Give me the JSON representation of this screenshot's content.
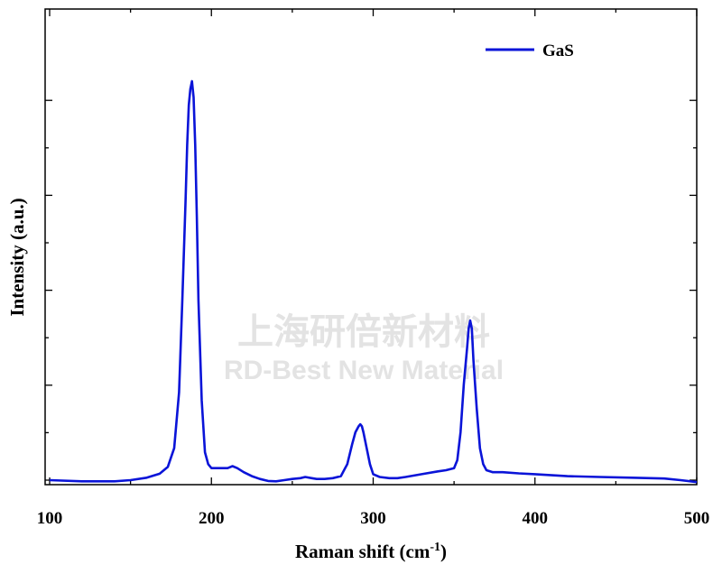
{
  "chart_data": {
    "type": "line",
    "title": "",
    "xlabel": "Raman shift (cm",
    "xlabel_sup": "-1",
    "xlabel_close": ")",
    "ylabel": "Intensity (a.u.)",
    "xlim": [
      100,
      500
    ],
    "ylim": [
      0,
      1
    ],
    "grid": false,
    "legend_position": "top-right",
    "x_ticks": [
      "100",
      "200",
      "300",
      "400",
      "500"
    ],
    "series": [
      {
        "name": "GaS",
        "color": "#0a14d8",
        "x": [
          100,
          120,
          140,
          150,
          160,
          168,
          173,
          177,
          180,
          182,
          184,
          185,
          186,
          187,
          188,
          189,
          190,
          191,
          192,
          194,
          196,
          198,
          200,
          205,
          210,
          213,
          216,
          220,
          225,
          230,
          235,
          240,
          245,
          250,
          255,
          258,
          262,
          265,
          270,
          275,
          280,
          284,
          287,
          289,
          291,
          292,
          293,
          294,
          296,
          298,
          300,
          304,
          310,
          315,
          320,
          330,
          340,
          345,
          350,
          352,
          354,
          356,
          358,
          359,
          360,
          361,
          362,
          364,
          366,
          368,
          370,
          374,
          380,
          390,
          400,
          420,
          440,
          460,
          480,
          490,
          500
        ],
        "y": [
          0.0,
          -0.003,
          -0.003,
          0.0,
          0.006,
          0.016,
          0.033,
          0.08,
          0.22,
          0.45,
          0.7,
          0.84,
          0.94,
          0.98,
          1.0,
          0.96,
          0.84,
          0.66,
          0.45,
          0.2,
          0.07,
          0.04,
          0.03,
          0.03,
          0.03,
          0.035,
          0.03,
          0.02,
          0.01,
          0.003,
          -0.002,
          -0.003,
          0.0,
          0.003,
          0.005,
          0.008,
          0.005,
          0.003,
          0.003,
          0.005,
          0.01,
          0.04,
          0.09,
          0.12,
          0.135,
          0.14,
          0.135,
          0.12,
          0.08,
          0.04,
          0.015,
          0.008,
          0.005,
          0.005,
          0.008,
          0.015,
          0.022,
          0.025,
          0.03,
          0.05,
          0.12,
          0.24,
          0.33,
          0.38,
          0.4,
          0.38,
          0.3,
          0.18,
          0.08,
          0.04,
          0.025,
          0.02,
          0.02,
          0.017,
          0.015,
          0.01,
          0.008,
          0.006,
          0.004,
          0.0,
          -0.005
        ]
      }
    ]
  },
  "watermark": {
    "cn": "上海研倍新材料",
    "en": "RD-Best New Material"
  }
}
